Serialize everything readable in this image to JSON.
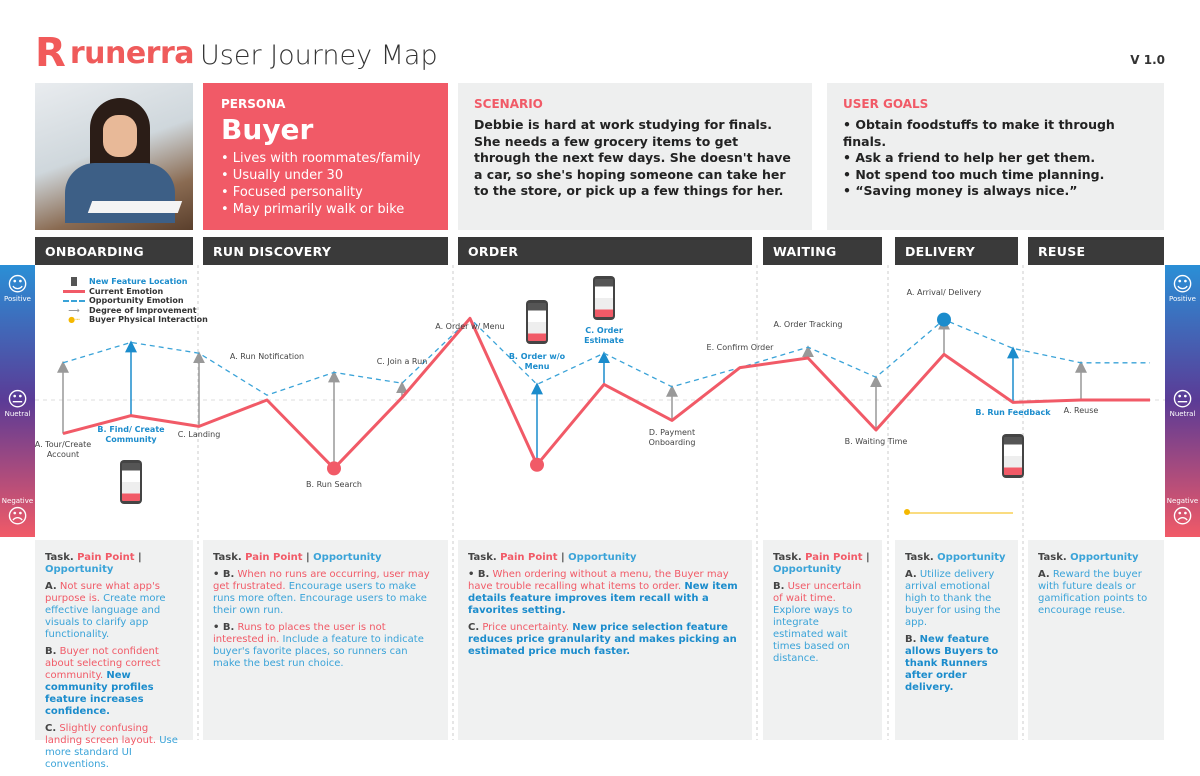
{
  "header": {
    "logo_mark": "R",
    "logo_text": "runerra",
    "title": "User Journey Map",
    "version": "V 1.0"
  },
  "persona": {
    "label": "PERSONA",
    "name": "Buyer",
    "traits": [
      "• Lives with roommates/family",
      "• Usually under 30",
      "• Focused personality",
      "• May primarily walk or bike"
    ]
  },
  "scenario": {
    "label": "SCENARIO",
    "text": "Debbie is hard at work studying for finals. She needs a few grocery items to get through the next few days. She doesn't have a car, so she's hoping someone can take her to the store, or pick up a few things for her."
  },
  "goals": {
    "label": "USER GOALS",
    "items": [
      "• Obtain foodstuffs to make it through finals.",
      "• Ask a friend to help her get them.",
      "• Not spend too much time planning.",
      "• “Saving money is always nice.”"
    ]
  },
  "phases": [
    "ONBOARDING",
    "RUN DISCOVERY",
    "ORDER",
    "WAITING",
    "DELIVERY",
    "REUSE"
  ],
  "scale": {
    "positive": "Positive",
    "neutral": "Nuetral",
    "negative": "Negative"
  },
  "legend": {
    "new_feature": "New Feature Location",
    "current": "Current Emotion",
    "opportunity": "Opportunity Emotion",
    "improvement": "Degree of Improvement",
    "physical": "Buyer Physical Interaction"
  },
  "colors": {
    "current": "#f15a67",
    "opportunity": "#3aa3d8",
    "improvement": "#999999",
    "accent": "#f15a67",
    "physical": "#f5b800"
  },
  "chart_data": {
    "type": "line",
    "ylabel": "Emotion",
    "ylim": [
      -1,
      1
    ],
    "y_ticks": [
      "Negative",
      "Nuetral",
      "Positive"
    ],
    "steps": [
      "A. Tour/Create Account",
      "B. Find/ Create Community",
      "C. Landing",
      "A. Run Notification",
      "B. Run Search",
      "C. Join a Run",
      "A. Order w/ Menu",
      "B. Order w/o Menu",
      "C. Order Estimate",
      "D. Payment Onboarding",
      "E. Confirm Order",
      "A. Order Tracking",
      "B. Waiting Time",
      "A. Arrival/ Delivery",
      "B. Run Feedback",
      "A. Reuse",
      ""
    ],
    "new_feature_steps": [
      1,
      7,
      8,
      14
    ],
    "series": [
      {
        "name": "Current Emotion",
        "values": [
          -0.28,
          -0.13,
          -0.22,
          0,
          -0.57,
          0.02,
          0.68,
          -0.54,
          0.13,
          -0.17,
          0.27,
          0.35,
          -0.25,
          0.38,
          -0.02,
          0,
          0
        ]
      },
      {
        "name": "Opportunity Emotion",
        "values": [
          0.31,
          0.48,
          0.39,
          0.04,
          0.23,
          0.14,
          0.68,
          0.13,
          0.39,
          0.11,
          0.27,
          0.44,
          0.19,
          0.67,
          0.43,
          0.31,
          0.31
        ]
      }
    ]
  },
  "panels": [
    {
      "task": "Task.",
      "pain": "Pain Point",
      "opp": "Opportunity",
      "items": [
        {
          "l": "A.",
          "p": "Not sure what app's purpose is.",
          "o": "Create more effective language and visuals to clarify app functionality.",
          "b": ""
        },
        {
          "l": "B.",
          "p": "Buyer not confident about selecting correct community.",
          "o": "",
          "b": "New community profiles feature increases confidence."
        },
        {
          "l": "C.",
          "p": "Slightly confusing landing screen layout.",
          "o": "Use more standard UI conventions.",
          "b": ""
        }
      ]
    },
    {
      "task": "Task.",
      "pain": "Pain Point",
      "opp": "Opportunity",
      "items": [
        {
          "l": "• B.",
          "p": "When no runs are occurring, user may get frustrated.",
          "o": "Encourage users to make runs more often. Encourage users to make their own run.",
          "b": ""
        },
        {
          "l": "• B.",
          "p": "Runs to places the user is not interested in.",
          "o": "Include a feature to indicate buyer's favorite places, so runners can make the best run choice.",
          "b": ""
        }
      ]
    },
    {
      "task": "Task.",
      "pain": "Pain Point",
      "opp": "Opportunity",
      "items": [
        {
          "l": "• B.",
          "p": "When ordering without a menu, the Buyer may have trouble recalling what items to order.",
          "o": "",
          "b": "New item details feature improves item recall with a favorites setting."
        },
        {
          "l": "C.",
          "p": "Price uncertainty.",
          "o": "",
          "b": "New price selection feature reduces price granularity and makes picking an estimated price much faster."
        }
      ]
    },
    {
      "task": "Task.",
      "pain": "Pain Point",
      "opp": "Opportunity",
      "items": [
        {
          "l": "B.",
          "p": "User uncertain of wait time.",
          "o": "Explore ways to integrate estimated wait times based on distance.",
          "b": ""
        }
      ]
    },
    {
      "task": "Task.",
      "pain": "",
      "opp": "Opportunity",
      "items": [
        {
          "l": "A.",
          "p": "",
          "o": "Utilize delivery arrival emotional high to thank the buyer for using the app.",
          "b": ""
        },
        {
          "l": "B.",
          "p": "",
          "o": "",
          "b": "New feature allows Buyers to thank Runners after order delivery."
        }
      ]
    },
    {
      "task": "Task.",
      "pain": "",
      "opp": "Opportunity",
      "items": [
        {
          "l": "A.",
          "p": "",
          "o": "Reward the buyer with future deals or gamification points to encourage reuse.",
          "b": ""
        }
      ]
    }
  ]
}
